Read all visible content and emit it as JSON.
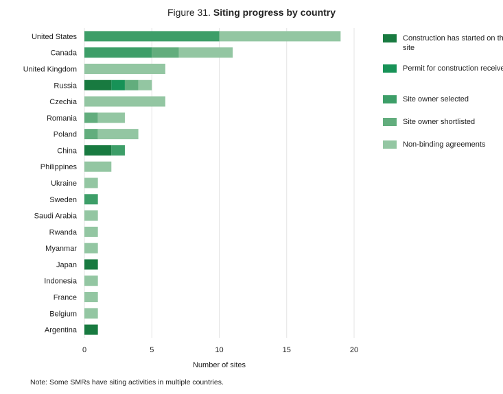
{
  "title": {
    "figure": "Figure 31.",
    "text": "Siting progress by country"
  },
  "note": "Note: Some SMRs have siting activities in multiple countries.",
  "chart_data": {
    "type": "bar",
    "orientation": "horizontal",
    "stacked": true,
    "xlabel": "Number of sites",
    "xlim": [
      0,
      20
    ],
    "xticks": [
      0,
      5,
      10,
      15,
      20
    ],
    "grid": true,
    "legend_position": "right",
    "categories": [
      "United States",
      "Canada",
      "United Kingdom",
      "Russia",
      "Czechia",
      "Romania",
      "Poland",
      "China",
      "Philippines",
      "Ukraine",
      "Sweden",
      "Saudi Arabia",
      "Rwanda",
      "Myanmar",
      "Japan",
      "Indonesia",
      "France",
      "Belgium",
      "Argentina"
    ],
    "series": [
      {
        "name": "Construction has started on the site",
        "color": "#187a40",
        "values": [
          0,
          0,
          0,
          2,
          0,
          0,
          0,
          2,
          0,
          0,
          0,
          0,
          0,
          0,
          1,
          0,
          0,
          0,
          1
        ]
      },
      {
        "name": "Permit for construction received",
        "color": "#179257",
        "values": [
          0,
          0,
          0,
          1,
          0,
          0,
          0,
          0,
          0,
          0,
          0,
          0,
          0,
          0,
          0,
          0,
          0,
          0,
          0
        ]
      },
      {
        "name": "Site owner selected",
        "color": "#3d9e68",
        "values": [
          10,
          5,
          0,
          0,
          0,
          0,
          0,
          1,
          0,
          0,
          1,
          0,
          0,
          0,
          0,
          0,
          0,
          0,
          0
        ]
      },
      {
        "name": "Site owner shortlisted",
        "color": "#62ad7d",
        "values": [
          0,
          2,
          0,
          1,
          0,
          1,
          1,
          0,
          0,
          0,
          0,
          0,
          0,
          0,
          0,
          0,
          0,
          0,
          0
        ]
      },
      {
        "name": "Non-binding agreements",
        "color": "#93c6a2",
        "values": [
          9,
          4,
          6,
          1,
          6,
          2,
          3,
          0,
          2,
          1,
          0,
          1,
          1,
          1,
          0,
          1,
          1,
          1,
          0
        ]
      }
    ]
  }
}
